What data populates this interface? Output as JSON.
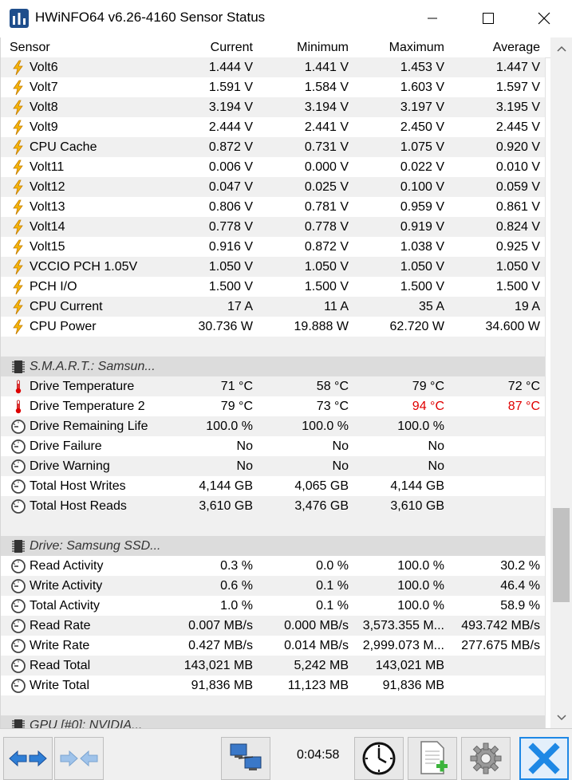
{
  "window": {
    "title": "HWiNFO64 v6.26-4160 Sensor Status",
    "minimize_icon": "minimize-icon",
    "maximize_icon": "maximize-icon",
    "close_icon": "close-icon"
  },
  "columns": [
    "Sensor",
    "Current",
    "Minimum",
    "Maximum",
    "Average"
  ],
  "rows": [
    {
      "type": "data",
      "icon": "voltage-icon",
      "name": "Volt6",
      "current": "1.444 V",
      "min": "1.441 V",
      "max": "1.453 V",
      "avg": "1.447 V"
    },
    {
      "type": "data",
      "icon": "voltage-icon",
      "name": "Volt7",
      "current": "1.591 V",
      "min": "1.584 V",
      "max": "1.603 V",
      "avg": "1.597 V"
    },
    {
      "type": "data",
      "icon": "voltage-icon",
      "name": "Volt8",
      "current": "3.194 V",
      "min": "3.194 V",
      "max": "3.197 V",
      "avg": "3.195 V"
    },
    {
      "type": "data",
      "icon": "voltage-icon",
      "name": "Volt9",
      "current": "2.444 V",
      "min": "2.441 V",
      "max": "2.450 V",
      "avg": "2.445 V"
    },
    {
      "type": "data",
      "icon": "voltage-icon",
      "name": "CPU Cache",
      "current": "0.872 V",
      "min": "0.731 V",
      "max": "1.075 V",
      "avg": "0.920 V"
    },
    {
      "type": "data",
      "icon": "voltage-icon",
      "name": "Volt11",
      "current": "0.006 V",
      "min": "0.000 V",
      "max": "0.022 V",
      "avg": "0.010 V"
    },
    {
      "type": "data",
      "icon": "voltage-icon",
      "name": "Volt12",
      "current": "0.047 V",
      "min": "0.025 V",
      "max": "0.100 V",
      "avg": "0.059 V"
    },
    {
      "type": "data",
      "icon": "voltage-icon",
      "name": "Volt13",
      "current": "0.806 V",
      "min": "0.781 V",
      "max": "0.959 V",
      "avg": "0.861 V"
    },
    {
      "type": "data",
      "icon": "voltage-icon",
      "name": "Volt14",
      "current": "0.778 V",
      "min": "0.778 V",
      "max": "0.919 V",
      "avg": "0.824 V"
    },
    {
      "type": "data",
      "icon": "voltage-icon",
      "name": "Volt15",
      "current": "0.916 V",
      "min": "0.872 V",
      "max": "1.038 V",
      "avg": "0.925 V"
    },
    {
      "type": "data",
      "icon": "voltage-icon",
      "name": "VCCIO PCH 1.05V",
      "current": "1.050 V",
      "min": "1.050 V",
      "max": "1.050 V",
      "avg": "1.050 V"
    },
    {
      "type": "data",
      "icon": "voltage-icon",
      "name": "PCH I/O",
      "current": "1.500 V",
      "min": "1.500 V",
      "max": "1.500 V",
      "avg": "1.500 V"
    },
    {
      "type": "data",
      "icon": "voltage-icon",
      "name": "CPU Current",
      "current": "17 A",
      "min": "11 A",
      "max": "35 A",
      "avg": "19 A"
    },
    {
      "type": "data",
      "icon": "voltage-icon",
      "name": "CPU Power",
      "current": "30.736 W",
      "min": "19.888 W",
      "max": "62.720 W",
      "avg": "34.600 W"
    },
    {
      "type": "blank"
    },
    {
      "type": "section",
      "icon": "chip-icon",
      "name": "S.M.A.R.T.: Samsun..."
    },
    {
      "type": "data",
      "icon": "thermometer-icon",
      "name": "Drive Temperature",
      "current": "71 °C",
      "min": "58 °C",
      "max": "79 °C",
      "avg": "72 °C"
    },
    {
      "type": "data",
      "icon": "thermometer-icon",
      "name": "Drive Temperature 2",
      "current": "79 °C",
      "min": "73 °C",
      "max": "94 °C",
      "avg": "87 °C",
      "max_red": true,
      "avg_red": true
    },
    {
      "type": "data",
      "icon": "gauge-icon",
      "name": "Drive Remaining Life",
      "current": "100.0 %",
      "min": "100.0 %",
      "max": "100.0 %",
      "avg": ""
    },
    {
      "type": "data",
      "icon": "gauge-icon",
      "name": "Drive Failure",
      "current": "No",
      "min": "No",
      "max": "No",
      "avg": ""
    },
    {
      "type": "data",
      "icon": "gauge-icon",
      "name": "Drive Warning",
      "current": "No",
      "min": "No",
      "max": "No",
      "avg": ""
    },
    {
      "type": "data",
      "icon": "gauge-icon",
      "name": "Total Host Writes",
      "current": "4,144 GB",
      "min": "4,065 GB",
      "max": "4,144 GB",
      "avg": ""
    },
    {
      "type": "data",
      "icon": "gauge-icon",
      "name": "Total Host Reads",
      "current": "3,610 GB",
      "min": "3,476 GB",
      "max": "3,610 GB",
      "avg": ""
    },
    {
      "type": "blank"
    },
    {
      "type": "section",
      "icon": "chip-icon",
      "name": "Drive: Samsung SSD..."
    },
    {
      "type": "data",
      "icon": "gauge-icon",
      "name": "Read Activity",
      "current": "0.3 %",
      "min": "0.0 %",
      "max": "100.0 %",
      "avg": "30.2 %"
    },
    {
      "type": "data",
      "icon": "gauge-icon",
      "name": "Write Activity",
      "current": "0.6 %",
      "min": "0.1 %",
      "max": "100.0 %",
      "avg": "46.4 %"
    },
    {
      "type": "data",
      "icon": "gauge-icon",
      "name": "Total Activity",
      "current": "1.0 %",
      "min": "0.1 %",
      "max": "100.0 %",
      "avg": "58.9 %"
    },
    {
      "type": "data",
      "icon": "gauge-icon",
      "name": "Read Rate",
      "current": "0.007 MB/s",
      "min": "0.000 MB/s",
      "max": "3,573.355 M...",
      "avg": "493.742 MB/s"
    },
    {
      "type": "data",
      "icon": "gauge-icon",
      "name": "Write Rate",
      "current": "0.427 MB/s",
      "min": "0.014 MB/s",
      "max": "2,999.073 M...",
      "avg": "277.675 MB/s"
    },
    {
      "type": "data",
      "icon": "gauge-icon",
      "name": "Read Total",
      "current": "143,021 MB",
      "min": "5,242 MB",
      "max": "143,021 MB",
      "avg": ""
    },
    {
      "type": "data",
      "icon": "gauge-icon",
      "name": "Write Total",
      "current": "91,836 MB",
      "min": "11,123 MB",
      "max": "91,836 MB",
      "avg": ""
    },
    {
      "type": "blank"
    },
    {
      "type": "section",
      "icon": "chip-icon",
      "name": "GPU [#0]: NVIDIA..."
    }
  ],
  "toolbar": {
    "timer": "0:04:58",
    "buttons": [
      "nav-arrows-icon",
      "nav-arrows-disabled-icon",
      "network-icon",
      "clock-icon",
      "add-report-icon",
      "settings-gear-icon",
      "close-sensor-icon"
    ]
  },
  "colors": {
    "alert": "#e00000",
    "accent_close": "#1e88e5"
  }
}
